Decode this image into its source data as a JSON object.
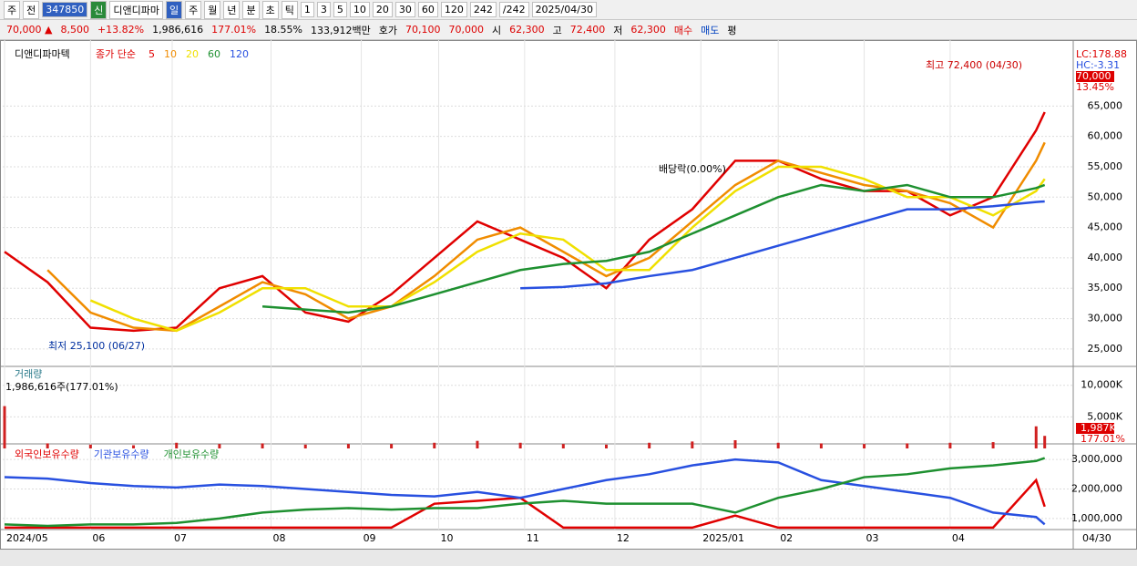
{
  "toolbar": [
    "주",
    "전",
    "347850",
    "신",
    "디앤디파마",
    "일",
    "주",
    "월",
    "년",
    "분",
    "초",
    "틱",
    "1",
    "3",
    "5",
    "10",
    "20",
    "30",
    "60",
    "120",
    "242",
    "/242",
    "2025/04/30"
  ],
  "infobar": [
    "70,000 ▲",
    "8,500",
    "+13.82%",
    "1,986,616",
    "177.01%",
    "18.55%",
    "133,912백만",
    "호가",
    "70,100",
    "70,000",
    "시",
    "62,300",
    "고",
    "72,400",
    "저",
    "62,300",
    "매수",
    "매도",
    "평"
  ],
  "price_chart": {
    "type": "line",
    "title": "디앤디파마텍",
    "legend_title": "종가 단순",
    "x": [
      0,
      10,
      20,
      30,
      40,
      50,
      60,
      70,
      80,
      90,
      100,
      110,
      120,
      130,
      140,
      150,
      160,
      170,
      180,
      190,
      200,
      210,
      220,
      230,
      240,
      242
    ],
    "xlim": [
      0,
      248
    ],
    "xticks": [
      {
        "value": 0,
        "label": "2024/05"
      },
      {
        "value": 20,
        "label": "06"
      },
      {
        "value": 39,
        "label": "07"
      },
      {
        "value": 62,
        "label": "08"
      },
      {
        "value": 83,
        "label": "09"
      },
      {
        "value": 101,
        "label": "10"
      },
      {
        "value": 121,
        "label": "11"
      },
      {
        "value": 142,
        "label": "12"
      },
      {
        "value": 162,
        "label": "2025/01"
      },
      {
        "value": 180,
        "label": "02"
      },
      {
        "value": 200,
        "label": "03"
      },
      {
        "value": 220,
        "label": "04"
      }
    ],
    "series": [
      {
        "name": "5",
        "color": "#e00000",
        "values": [
          41000,
          36000,
          28500,
          28000,
          28500,
          35000,
          37000,
          31000,
          29500,
          34000,
          40000,
          46000,
          43000,
          40000,
          35000,
          43000,
          48000,
          56000,
          56000,
          53000,
          51000,
          51000,
          47000,
          50000,
          61000,
          64000
        ]
      },
      {
        "name": "10",
        "color": "#f08c00",
        "values": [
          null,
          38000,
          31000,
          28500,
          28000,
          32000,
          36000,
          34000,
          30000,
          32000,
          37000,
          43000,
          45000,
          41000,
          37000,
          40000,
          46000,
          52000,
          56000,
          54000,
          52000,
          51000,
          49000,
          45000,
          56000,
          59000
        ]
      },
      {
        "name": "20",
        "color": "#f0e000",
        "values": [
          null,
          null,
          33000,
          30000,
          28000,
          31000,
          35000,
          35000,
          32000,
          32000,
          36000,
          41000,
          44000,
          43000,
          38000,
          38000,
          45000,
          51000,
          55000,
          55000,
          53000,
          50000,
          50000,
          47000,
          51000,
          53000
        ]
      },
      {
        "name": "60",
        "color": "#1e9030",
        "values": [
          null,
          null,
          null,
          null,
          null,
          null,
          32000,
          31500,
          31000,
          32000,
          34000,
          36000,
          38000,
          39000,
          39500,
          41000,
          44000,
          47000,
          50000,
          52000,
          51000,
          52000,
          50000,
          50000,
          51500,
          52000
        ]
      },
      {
        "name": "120",
        "color": "#2850e0",
        "values": [
          null,
          null,
          null,
          null,
          null,
          null,
          null,
          null,
          null,
          null,
          null,
          null,
          35000,
          35200,
          35800,
          37000,
          38000,
          40000,
          42000,
          44000,
          46000,
          48000,
          48000,
          48500,
          49200,
          49300
        ]
      }
    ],
    "ylim": [
      22130,
      74960
    ],
    "yticks": [
      {
        "value": 25000,
        "label": "25,000"
      },
      {
        "value": 30000,
        "label": "30,000"
      },
      {
        "value": 35000,
        "label": "35,000"
      },
      {
        "value": 40000,
        "label": "40,000"
      },
      {
        "value": 45000,
        "label": "45,000"
      },
      {
        "value": 50000,
        "label": "50,000"
      },
      {
        "value": 55000,
        "label": "55,000"
      },
      {
        "value": 60000,
        "label": "60,000"
      },
      {
        "value": 65000,
        "label": "65,000"
      }
    ],
    "annotations": [
      "최고 72,400 (04/30)",
      "최저 25,100 (06/27)",
      "배당락(0.00%)"
    ],
    "side_labels": [
      "LC:178.88",
      "HC:-3.31",
      "70,000",
      "13.45%"
    ]
  },
  "volume_chart": {
    "type": "bar",
    "title": "거래량",
    "subtitle": "1,986,616주(177.01%)",
    "color": "#d02020",
    "values": [
      6700,
      800,
      600,
      500,
      900,
      700,
      800,
      600,
      700,
      700,
      900,
      1200,
      900,
      700,
      600,
      900,
      1100,
      1300,
      900,
      800,
      700,
      800,
      900,
      1000,
      3500,
      1987
    ],
    "ylim": [
      0,
      12700
    ],
    "yticks": [
      {
        "value": 5000,
        "label": "5,000K"
      },
      {
        "value": 10000,
        "label": "10,000K"
      }
    ],
    "side_labels": [
      "1,987K",
      "177.01%"
    ]
  },
  "holdings_chart": {
    "type": "line",
    "series": [
      {
        "name": "외국인보유수량",
        "color": "#e00000",
        "values": [
          690000,
          690000,
          690000,
          690000,
          690000,
          690000,
          690000,
          690000,
          690000,
          690000,
          1500000,
          1600000,
          1700000,
          690000,
          690000,
          690000,
          690000,
          1100000,
          690000,
          690000,
          690000,
          690000,
          690000,
          690000,
          2300000,
          1400000
        ]
      },
      {
        "name": "기관보유수량",
        "color": "#2850e0",
        "values": [
          2400000,
          2350000,
          2200000,
          2100000,
          2050000,
          2150000,
          2100000,
          2000000,
          1900000,
          1800000,
          1750000,
          1900000,
          1700000,
          2000000,
          2300000,
          2500000,
          2800000,
          3000000,
          2900000,
          2300000,
          2100000,
          1900000,
          1700000,
          1200000,
          1050000,
          800000
        ]
      },
      {
        "name": "개인보유수량",
        "color": "#1e9030",
        "values": [
          800000,
          750000,
          800000,
          800000,
          850000,
          1000000,
          1200000,
          1300000,
          1350000,
          1300000,
          1350000,
          1350000,
          1500000,
          1600000,
          1500000,
          1500000,
          1500000,
          1200000,
          1700000,
          2000000,
          2400000,
          2500000,
          2700000,
          2800000,
          2950000,
          3050000
        ]
      }
    ],
    "ylim": [
      625000,
      3375000
    ],
    "yticks": [
      {
        "value": 1000000,
        "label": "1,000,000"
      },
      {
        "value": 2000000,
        "label": "2,000,000"
      },
      {
        "value": 3000000,
        "label": "3,000,000"
      }
    ],
    "side_label": "04/30"
  }
}
